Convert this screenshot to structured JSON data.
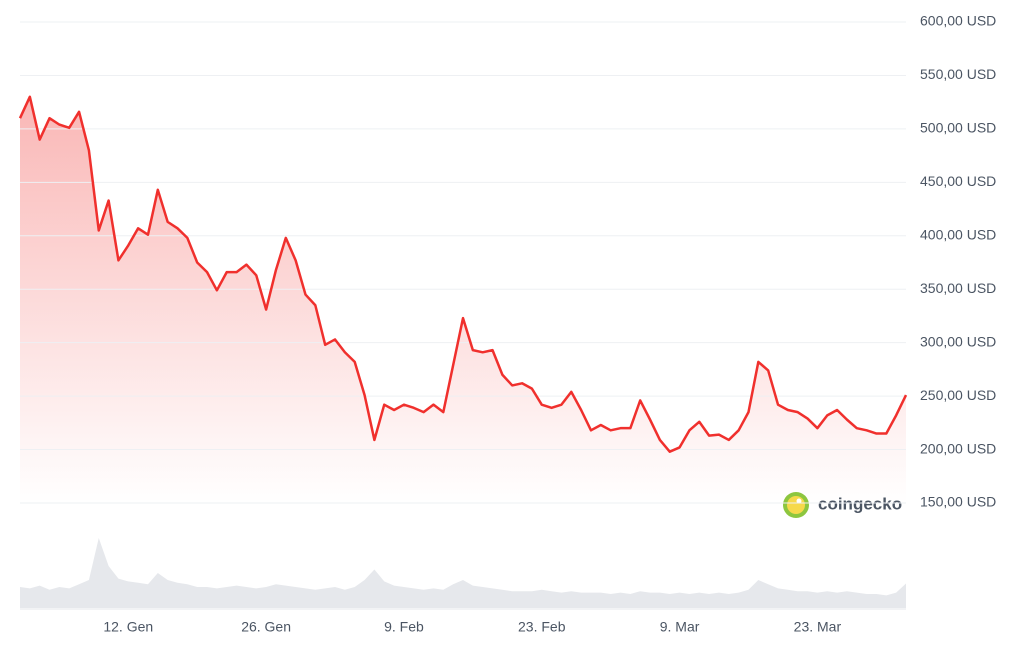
{
  "chart_data": {
    "type": "line",
    "brand": "coingecko",
    "x": [
      0,
      1,
      2,
      3,
      4,
      5,
      6,
      7,
      8,
      9,
      10,
      11,
      12,
      13,
      14,
      15,
      16,
      17,
      18,
      19,
      20,
      21,
      22,
      23,
      24,
      25,
      26,
      27,
      28,
      29,
      30,
      31,
      32,
      33,
      34,
      35,
      36,
      37,
      38,
      39,
      40,
      41,
      42,
      43,
      44,
      45,
      46,
      47,
      48,
      49,
      50,
      51,
      52,
      53,
      54,
      55,
      56,
      57,
      58,
      59,
      60,
      61,
      62,
      63,
      64,
      65,
      66,
      67,
      68,
      69,
      70,
      71,
      72,
      73,
      74,
      75,
      76,
      77,
      78,
      79,
      80,
      81,
      82,
      83,
      84,
      85,
      86,
      87,
      88,
      89,
      90
    ],
    "series": [
      {
        "color": "#f0302d",
        "values": [
          510,
          530,
          490,
          510,
          504,
          501,
          516,
          480,
          405,
          433,
          377,
          391,
          407,
          401,
          443,
          413,
          407,
          398,
          375,
          366,
          349,
          366,
          366,
          373,
          363,
          331,
          368,
          398,
          377,
          345,
          335,
          298,
          303,
          291,
          282,
          251,
          209,
          242,
          237,
          242,
          239,
          235,
          242,
          235,
          279,
          323,
          293,
          291,
          293,
          270,
          260,
          262,
          257,
          242,
          239,
          242,
          254,
          237,
          218,
          223,
          218,
          220,
          220,
          246,
          228,
          209,
          198,
          202,
          218,
          226,
          213,
          214,
          209,
          218,
          235,
          282,
          274,
          242,
          237,
          235,
          229,
          220,
          232,
          237,
          228,
          220,
          218,
          215,
          215,
          232,
          251
        ]
      }
    ],
    "volume": {
      "color": "#e6e8ec",
      "values": [
        30,
        28,
        32,
        26,
        30,
        28,
        34,
        40,
        100,
        60,
        42,
        38,
        36,
        34,
        50,
        40,
        36,
        34,
        30,
        30,
        28,
        30,
        32,
        30,
        28,
        30,
        34,
        32,
        30,
        28,
        26,
        28,
        30,
        26,
        30,
        40,
        55,
        38,
        32,
        30,
        28,
        26,
        28,
        26,
        34,
        40,
        32,
        30,
        28,
        26,
        24,
        24,
        24,
        26,
        24,
        22,
        24,
        22,
        22,
        22,
        20,
        22,
        20,
        24,
        22,
        22,
        20,
        22,
        20,
        22,
        20,
        22,
        20,
        22,
        26,
        40,
        34,
        28,
        26,
        24,
        24,
        22,
        24,
        22,
        24,
        22,
        20,
        20,
        18,
        22,
        35
      ]
    },
    "volume_lim": [
      0,
      100
    ],
    "xlim": [
      0,
      90
    ],
    "xticks": [
      {
        "value": 11,
        "label": "12. Gen"
      },
      {
        "value": 25,
        "label": "26. Gen"
      },
      {
        "value": 39,
        "label": "9. Feb"
      },
      {
        "value": 53,
        "label": "23. Feb"
      },
      {
        "value": 67,
        "label": "9. Mar"
      },
      {
        "value": 81,
        "label": "23. Mar"
      }
    ],
    "ylim": [
      150,
      600
    ],
    "yticks": [
      {
        "value": 600,
        "label": "600,00 USD"
      },
      {
        "value": 550,
        "label": "550,00 USD"
      },
      {
        "value": 500,
        "label": "500,00 USD"
      },
      {
        "value": 450,
        "label": "450,00 USD"
      },
      {
        "value": 400,
        "label": "400,00 USD"
      },
      {
        "value": 350,
        "label": "350,00 USD"
      },
      {
        "value": 300,
        "label": "300,00 USD"
      },
      {
        "value": 250,
        "label": "250,00 USD"
      },
      {
        "value": 200,
        "label": "200,00 USD"
      },
      {
        "value": 150,
        "label": "150,00 USD"
      }
    ],
    "grid": true
  }
}
